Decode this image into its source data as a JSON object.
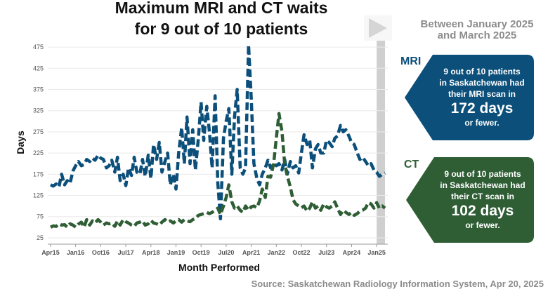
{
  "title_line1": "Maximum MRI and CT waits",
  "title_line2": "for 9 out of 10 patients",
  "period": {
    "line1": "Between January 2025",
    "line2": "and March 2025",
    "play_icon": "play-icon"
  },
  "callouts": {
    "mri": {
      "label": "MRI",
      "line1": "9 out of 10 patients",
      "line2": "in Saskatchewan had",
      "line3": "their MRI scan in",
      "value": "172 days",
      "suffix": "or fewer.",
      "color": "#0b4f7a"
    },
    "ct": {
      "label": "CT",
      "line1": "9 out of 10 patients",
      "line2": "in Saskatchewan had",
      "line3": "their CT scan in",
      "value": "102 days",
      "suffix": "or fewer.",
      "color": "#2f5e35"
    }
  },
  "source": "Source: Saskatchewan Radiology Information System, Apr 20, 2025",
  "chart_data": {
    "type": "line",
    "title": "Maximum MRI and CT waits for 9 out of 10 patients",
    "xlabel": "Month Performed",
    "ylabel": "Days",
    "ylim": [
      10,
      490
    ],
    "xlim": [
      2015.167,
      2025.333
    ],
    "grid": true,
    "x_tick_labels": [
      "Apr15",
      "Jan16",
      "Oct16",
      "Jul17",
      "Apr18",
      "Jan19",
      "Oct19",
      "Jul20",
      "Apr21",
      "Jan22",
      "Oct22",
      "Jul23",
      "Apr24",
      "Jan25"
    ],
    "x_tick_positions": [
      2015.25,
      2016.0,
      2016.75,
      2017.5,
      2018.25,
      2019.0,
      2019.75,
      2020.5,
      2021.25,
      2022.0,
      2022.75,
      2023.5,
      2024.25,
      2025.0
    ],
    "y_ticks": [
      25,
      75,
      125,
      175,
      225,
      275,
      325,
      375,
      425,
      475
    ],
    "highlight_range": [
      2025.0,
      2025.25
    ],
    "series": [
      {
        "name": "MRI",
        "color": "#0b4f7a",
        "points": [
          [
            2015.25,
            150
          ],
          [
            2015.33,
            147
          ],
          [
            2015.42,
            152
          ],
          [
            2015.5,
            145
          ],
          [
            2015.58,
            175
          ],
          [
            2015.67,
            150
          ],
          [
            2015.75,
            160
          ],
          [
            2015.83,
            153
          ],
          [
            2015.92,
            183
          ],
          [
            2016.0,
            195
          ],
          [
            2016.08,
            205
          ],
          [
            2016.17,
            195
          ],
          [
            2016.25,
            198
          ],
          [
            2016.33,
            210
          ],
          [
            2016.42,
            205
          ],
          [
            2016.5,
            213
          ],
          [
            2016.58,
            208
          ],
          [
            2016.67,
            220
          ],
          [
            2016.75,
            213
          ],
          [
            2016.83,
            210
          ],
          [
            2016.92,
            190
          ],
          [
            2017.0,
            195
          ],
          [
            2017.08,
            208
          ],
          [
            2017.17,
            180
          ],
          [
            2017.25,
            215
          ],
          [
            2017.33,
            160
          ],
          [
            2017.42,
            175
          ],
          [
            2017.5,
            148
          ],
          [
            2017.58,
            190
          ],
          [
            2017.67,
            172
          ],
          [
            2017.75,
            215
          ],
          [
            2017.83,
            180
          ],
          [
            2017.92,
            175
          ],
          [
            2018.0,
            210
          ],
          [
            2018.08,
            170
          ],
          [
            2018.17,
            220
          ],
          [
            2018.25,
            165
          ],
          [
            2018.33,
            245
          ],
          [
            2018.42,
            210
          ],
          [
            2018.5,
            250
          ],
          [
            2018.58,
            180
          ],
          [
            2018.67,
            205
          ],
          [
            2018.75,
            225
          ],
          [
            2018.83,
            150
          ],
          [
            2018.92,
            175
          ],
          [
            2019.0,
            140
          ],
          [
            2019.08,
            225
          ],
          [
            2019.17,
            285
          ],
          [
            2019.25,
            200
          ],
          [
            2019.33,
            310
          ],
          [
            2019.42,
            200
          ],
          [
            2019.5,
            280
          ],
          [
            2019.58,
            185
          ],
          [
            2019.67,
            260
          ],
          [
            2019.75,
            345
          ],
          [
            2019.83,
            255
          ],
          [
            2019.92,
            335
          ],
          [
            2020.0,
            275
          ],
          [
            2020.08,
            190
          ],
          [
            2020.17,
            360
          ],
          [
            2020.25,
            155
          ],
          [
            2020.33,
            70
          ],
          [
            2020.42,
            260
          ],
          [
            2020.5,
            300
          ],
          [
            2020.58,
            330
          ],
          [
            2020.67,
            175
          ],
          [
            2020.75,
            310
          ],
          [
            2020.83,
            375
          ],
          [
            2020.92,
            190
          ],
          [
            2021.0,
            175
          ],
          [
            2021.08,
            190
          ],
          [
            2021.17,
            480
          ],
          [
            2021.25,
            355
          ],
          [
            2021.33,
            200
          ],
          [
            2021.42,
            165
          ],
          [
            2021.5,
            150
          ],
          [
            2021.58,
            175
          ],
          [
            2021.67,
            190
          ],
          [
            2021.75,
            208
          ],
          [
            2021.83,
            190
          ],
          [
            2021.92,
            200
          ],
          [
            2022.0,
            195
          ],
          [
            2022.08,
            200
          ],
          [
            2022.17,
            185
          ],
          [
            2022.25,
            210
          ],
          [
            2022.33,
            175
          ],
          [
            2022.42,
            205
          ],
          [
            2022.5,
            190
          ],
          [
            2022.58,
            195
          ],
          [
            2022.67,
            178
          ],
          [
            2022.75,
            225
          ],
          [
            2022.83,
            268
          ],
          [
            2022.92,
            245
          ],
          [
            2023.0,
            255
          ],
          [
            2023.08,
            190
          ],
          [
            2023.17,
            235
          ],
          [
            2023.25,
            245
          ],
          [
            2023.33,
            225
          ],
          [
            2023.42,
            225
          ],
          [
            2023.5,
            255
          ],
          [
            2023.58,
            250
          ],
          [
            2023.67,
            240
          ],
          [
            2023.75,
            260
          ],
          [
            2023.83,
            265
          ],
          [
            2023.92,
            290
          ],
          [
            2024.0,
            275
          ],
          [
            2024.08,
            280
          ],
          [
            2024.17,
            265
          ],
          [
            2024.25,
            250
          ],
          [
            2024.33,
            245
          ],
          [
            2024.42,
            225
          ],
          [
            2024.5,
            210
          ],
          [
            2024.58,
            215
          ],
          [
            2024.67,
            205
          ],
          [
            2024.75,
            195
          ],
          [
            2024.83,
            200
          ],
          [
            2024.92,
            185
          ],
          [
            2025.0,
            180
          ],
          [
            2025.08,
            170
          ],
          [
            2025.17,
            175
          ],
          [
            2025.25,
            178
          ]
        ]
      },
      {
        "name": "CT",
        "color": "#2f5e35",
        "points": [
          [
            2015.25,
            50
          ],
          [
            2015.33,
            53
          ],
          [
            2015.42,
            52
          ],
          [
            2015.5,
            58
          ],
          [
            2015.58,
            55
          ],
          [
            2015.67,
            56
          ],
          [
            2015.75,
            50
          ],
          [
            2015.83,
            58
          ],
          [
            2015.92,
            55
          ],
          [
            2016.0,
            50
          ],
          [
            2016.08,
            57
          ],
          [
            2016.17,
            62
          ],
          [
            2016.25,
            50
          ],
          [
            2016.33,
            68
          ],
          [
            2016.42,
            55
          ],
          [
            2016.5,
            65
          ],
          [
            2016.58,
            60
          ],
          [
            2016.67,
            68
          ],
          [
            2016.75,
            62
          ],
          [
            2016.83,
            55
          ],
          [
            2016.92,
            60
          ],
          [
            2017.0,
            58
          ],
          [
            2017.08,
            60
          ],
          [
            2017.17,
            52
          ],
          [
            2017.25,
            65
          ],
          [
            2017.33,
            55
          ],
          [
            2017.42,
            68
          ],
          [
            2017.5,
            63
          ],
          [
            2017.58,
            60
          ],
          [
            2017.67,
            55
          ],
          [
            2017.75,
            52
          ],
          [
            2017.83,
            60
          ],
          [
            2017.92,
            62
          ],
          [
            2018.0,
            65
          ],
          [
            2018.08,
            55
          ],
          [
            2018.17,
            58
          ],
          [
            2018.25,
            66
          ],
          [
            2018.33,
            60
          ],
          [
            2018.42,
            58
          ],
          [
            2018.5,
            55
          ],
          [
            2018.58,
            62
          ],
          [
            2018.67,
            68
          ],
          [
            2018.75,
            62
          ],
          [
            2018.83,
            65
          ],
          [
            2018.92,
            60
          ],
          [
            2019.0,
            65
          ],
          [
            2019.08,
            68
          ],
          [
            2019.17,
            62
          ],
          [
            2019.25,
            68
          ],
          [
            2019.33,
            65
          ],
          [
            2019.42,
            63
          ],
          [
            2019.5,
            68
          ],
          [
            2019.58,
            70
          ],
          [
            2019.67,
            78
          ],
          [
            2019.75,
            80
          ],
          [
            2019.83,
            82
          ],
          [
            2019.92,
            85
          ],
          [
            2020.0,
            82
          ],
          [
            2020.08,
            85
          ],
          [
            2020.17,
            90
          ],
          [
            2020.25,
            95
          ],
          [
            2020.33,
            80
          ],
          [
            2020.42,
            100
          ],
          [
            2020.5,
            120
          ],
          [
            2020.58,
            150
          ],
          [
            2020.67,
            110
          ],
          [
            2020.75,
            95
          ],
          [
            2020.83,
            100
          ],
          [
            2020.92,
            90
          ],
          [
            2021.0,
            85
          ],
          [
            2021.08,
            100
          ],
          [
            2021.17,
            90
          ],
          [
            2021.25,
            98
          ],
          [
            2021.33,
            100
          ],
          [
            2021.42,
            96
          ],
          [
            2021.5,
            112
          ],
          [
            2021.58,
            140
          ],
          [
            2021.67,
            120
          ],
          [
            2021.75,
            170
          ],
          [
            2021.83,
            168
          ],
          [
            2021.92,
            200
          ],
          [
            2022.0,
            260
          ],
          [
            2022.08,
            318
          ],
          [
            2022.17,
            275
          ],
          [
            2022.25,
            200
          ],
          [
            2022.33,
            170
          ],
          [
            2022.42,
            145
          ],
          [
            2022.5,
            115
          ],
          [
            2022.58,
            105
          ],
          [
            2022.67,
            100
          ],
          [
            2022.75,
            96
          ],
          [
            2022.83,
            100
          ],
          [
            2022.92,
            88
          ],
          [
            2023.0,
            95
          ],
          [
            2023.08,
            110
          ],
          [
            2023.17,
            95
          ],
          [
            2023.25,
            100
          ],
          [
            2023.33,
            90
          ],
          [
            2023.42,
            105
          ],
          [
            2023.5,
            98
          ],
          [
            2023.58,
            95
          ],
          [
            2023.67,
            100
          ],
          [
            2023.75,
            110
          ],
          [
            2023.83,
            95
          ],
          [
            2023.92,
            80
          ],
          [
            2024.0,
            90
          ],
          [
            2024.08,
            85
          ],
          [
            2024.17,
            80
          ],
          [
            2024.25,
            85
          ],
          [
            2024.33,
            78
          ],
          [
            2024.42,
            82
          ],
          [
            2024.5,
            88
          ],
          [
            2024.58,
            90
          ],
          [
            2024.67,
            95
          ],
          [
            2024.75,
            108
          ],
          [
            2024.83,
            105
          ],
          [
            2024.92,
            95
          ],
          [
            2025.0,
            108
          ],
          [
            2025.08,
            95
          ],
          [
            2025.17,
            100
          ],
          [
            2025.25,
            95
          ]
        ]
      }
    ]
  }
}
